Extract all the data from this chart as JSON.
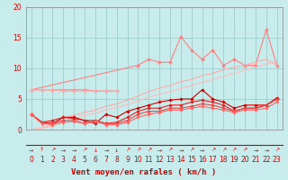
{
  "bg_color": "#c8ecec",
  "grid_color": "#a0cccc",
  "x_values": [
    0,
    1,
    2,
    3,
    4,
    5,
    6,
    7,
    8,
    9,
    10,
    11,
    12,
    13,
    14,
    15,
    16,
    17,
    18,
    19,
    20,
    21,
    22,
    23
  ],
  "series": [
    {
      "y": [
        6.5,
        null,
        null,
        null,
        null,
        null,
        null,
        null,
        null,
        null,
        10.5,
        11.5,
        11.0,
        11.0,
        15.2,
        13.0,
        11.5,
        13.0,
        10.5,
        11.5,
        10.5,
        10.5,
        16.3,
        10.5
      ],
      "color": "#ff8080",
      "lw": 0.8,
      "marker": "D",
      "ms": 2.0
    },
    {
      "y": [
        6.5,
        6.5,
        6.5,
        6.5,
        6.5,
        6.5,
        6.3,
        6.3,
        6.3,
        null,
        null,
        null,
        null,
        null,
        null,
        null,
        null,
        null,
        null,
        null,
        null,
        null,
        null,
        null
      ],
      "color": "#ff8080",
      "lw": 0.8,
      "marker": "D",
      "ms": 2.0
    },
    {
      "y": [
        6.5,
        6.5,
        6.5,
        6.3,
        6.3,
        6.3,
        6.3,
        6.3,
        6.3,
        null,
        null,
        null,
        null,
        null,
        null,
        null,
        null,
        null,
        null,
        null,
        null,
        null,
        null,
        null
      ],
      "color": "#ffaaaa",
      "lw": 0.8,
      "marker": "D",
      "ms": 2.0
    },
    {
      "y": [
        0.0,
        0.3,
        0.8,
        2.0,
        2.3,
        2.8,
        3.2,
        3.8,
        4.2,
        4.8,
        5.5,
        6.2,
        6.8,
        7.2,
        7.8,
        8.2,
        8.8,
        9.2,
        9.8,
        10.2,
        10.5,
        11.0,
        11.5,
        10.5
      ],
      "color": "#ffaaaa",
      "lw": 0.8,
      "marker": null,
      "ms": 0
    },
    {
      "y": [
        0.0,
        0.2,
        0.6,
        1.5,
        1.8,
        2.3,
        2.7,
        3.2,
        3.6,
        4.1,
        4.7,
        5.3,
        5.8,
        6.2,
        6.7,
        7.2,
        7.7,
        8.2,
        8.7,
        9.2,
        9.7,
        10.2,
        10.7,
        11.2
      ],
      "color": "#ffbbbb",
      "lw": 0.8,
      "marker": null,
      "ms": 0
    },
    {
      "y": [
        2.5,
        1.2,
        1.0,
        2.0,
        2.0,
        1.5,
        1.0,
        2.5,
        2.0,
        3.0,
        3.5,
        4.0,
        4.5,
        4.8,
        5.0,
        5.0,
        6.5,
        5.0,
        4.5,
        3.5,
        4.0,
        4.0,
        4.0,
        5.2
      ],
      "color": "#cc0000",
      "lw": 0.8,
      "marker": "D",
      "ms": 1.8
    },
    {
      "y": [
        2.5,
        1.2,
        1.5,
        2.0,
        1.8,
        1.5,
        1.5,
        1.0,
        1.2,
        2.0,
        3.0,
        3.5,
        3.5,
        4.0,
        4.0,
        4.5,
        4.8,
        4.5,
        4.0,
        3.0,
        3.5,
        3.5,
        4.0,
        5.0
      ],
      "color": "#dd2222",
      "lw": 0.8,
      "marker": "D",
      "ms": 1.8
    },
    {
      "y": [
        2.5,
        1.0,
        1.0,
        1.5,
        1.5,
        1.0,
        1.5,
        1.0,
        1.0,
        1.5,
        2.5,
        3.0,
        3.0,
        3.5,
        3.5,
        3.8,
        4.2,
        4.0,
        3.5,
        3.0,
        3.5,
        3.5,
        4.0,
        5.0
      ],
      "color": "#ee4444",
      "lw": 0.8,
      "marker": "D",
      "ms": 1.8
    },
    {
      "y": [
        2.5,
        1.0,
        0.8,
        1.2,
        1.3,
        1.0,
        1.3,
        0.8,
        0.8,
        1.2,
        2.0,
        2.5,
        2.8,
        3.2,
        3.2,
        3.5,
        3.8,
        3.5,
        3.2,
        2.8,
        3.2,
        3.2,
        3.5,
        4.5
      ],
      "color": "#ff6666",
      "lw": 0.8,
      "marker": "D",
      "ms": 1.8
    }
  ],
  "arrows": [
    "→",
    "↑",
    "↗",
    "→",
    "→",
    "↗",
    "↓",
    "→",
    "↓",
    "↗",
    "↗",
    "↗",
    "→",
    "↗",
    "→",
    "↗",
    "→",
    "↗",
    "↗",
    "↗",
    "↗",
    "→",
    "→",
    "↗"
  ],
  "xlabel": "Vent moyen/en rafales ( km/h )",
  "ylim": [
    0,
    20
  ],
  "xlim": [
    -0.5,
    23.5
  ],
  "yticks": [
    0,
    5,
    10,
    15,
    20
  ],
  "xticks": [
    0,
    1,
    2,
    3,
    4,
    5,
    6,
    7,
    8,
    9,
    10,
    11,
    12,
    13,
    14,
    15,
    16,
    17,
    18,
    19,
    20,
    21,
    22,
    23
  ],
  "xlabel_fontsize": 6.5,
  "tick_fontsize": 5.5,
  "arrow_fontsize": 4.5
}
